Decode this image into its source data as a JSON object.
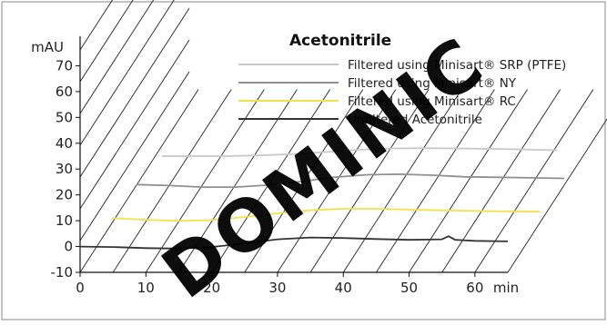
{
  "chart_data": {
    "type": "line",
    "title": "Acetonitrile",
    "ylabel": "mAU",
    "xlabel": "min",
    "ylim": [
      -10,
      80
    ],
    "xlim": [
      0,
      65
    ],
    "y_ticks": [
      "-10",
      "0",
      "10",
      "20",
      "30",
      "40",
      "50",
      "60",
      "70"
    ],
    "x_ticks": [
      "0",
      "10",
      "20",
      "30",
      "40",
      "50",
      "60"
    ],
    "grid": true,
    "legend_position": "top-right",
    "series": [
      {
        "name": "Filtered using Minisart® SRP (PTFE)",
        "color": "#c8c8c8",
        "x": [
          0,
          5,
          10,
          15,
          20,
          25,
          30,
          35,
          40,
          45,
          50,
          55,
          60,
          65
        ],
        "y": [
          0,
          0,
          0,
          0.3,
          0.8,
          1.6,
          2.5,
          3.0,
          3.1,
          3.0,
          2.8,
          2.6,
          2.3,
          2.1
        ]
      },
      {
        "name": "Filtered using Minisart® NY",
        "color": "#909090",
        "x": [
          0,
          5,
          10,
          15,
          20,
          25,
          30,
          35,
          40,
          45,
          50,
          55,
          60,
          65
        ],
        "y": [
          0,
          -0.4,
          -1.0,
          -1.0,
          -0.2,
          1.2,
          2.8,
          3.8,
          4.0,
          3.6,
          3.0,
          2.8,
          2.6,
          2.4
        ]
      },
      {
        "name": "Filtered using Minisart® RC",
        "color": "#f2e24a",
        "x": [
          0,
          5,
          10,
          15,
          20,
          25,
          30,
          35,
          40,
          45,
          50,
          55,
          60,
          65
        ],
        "y": [
          0,
          -0.6,
          -1.1,
          -0.8,
          0.4,
          1.8,
          3.0,
          3.6,
          3.6,
          3.3,
          3.0,
          2.8,
          2.6,
          2.5
        ]
      },
      {
        "name": "Unfiltered Acetonitrile",
        "color": "#333333",
        "x": [
          0,
          5,
          10,
          15,
          20,
          25,
          30,
          35,
          40,
          45,
          50,
          53,
          55,
          56,
          57,
          60,
          65
        ],
        "y": [
          0,
          -0.2,
          -0.6,
          -0.8,
          -0.2,
          1.2,
          2.8,
          3.5,
          3.3,
          2.9,
          2.6,
          2.7,
          2.8,
          4.0,
          2.6,
          2.2,
          2.0
        ]
      }
    ],
    "watermark": "DOMINIC"
  }
}
